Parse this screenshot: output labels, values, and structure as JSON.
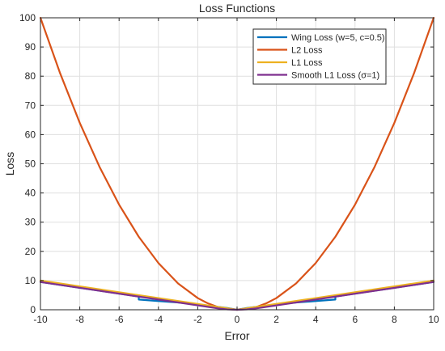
{
  "chart_data": {
    "type": "line",
    "title": "Loss Functions",
    "xlabel": "Error",
    "ylabel": "Loss",
    "xlim": [
      -10,
      10
    ],
    "ylim": [
      0,
      100
    ],
    "xticks": [
      -10,
      -8,
      -6,
      -4,
      -2,
      0,
      2,
      4,
      6,
      8,
      10
    ],
    "yticks": [
      0,
      10,
      20,
      30,
      40,
      50,
      60,
      70,
      80,
      90,
      100
    ],
    "grid": true,
    "legend_position": "top-right",
    "series": [
      {
        "name": "Wing Loss (w=5, c=0.5)",
        "color": "#0072BD",
        "x": [
          -10,
          -9,
          -8,
          -7,
          -6,
          -5,
          -4.999,
          -4,
          -3,
          -2,
          -1,
          -0.5,
          0,
          0.5,
          1,
          2,
          3,
          4,
          4.999,
          5,
          6,
          7,
          8,
          9,
          10
        ],
        "y": [
          9.52,
          8.52,
          7.52,
          6.52,
          5.52,
          4.52,
          3.49,
          2.97,
          2.47,
          1.8,
          1.02,
          0.6,
          0,
          0.6,
          1.02,
          1.8,
          2.47,
          2.97,
          3.49,
          4.52,
          5.52,
          6.52,
          7.52,
          8.52,
          9.52
        ]
      },
      {
        "name": "L2 Loss",
        "color": "#D95319",
        "x": [
          -10,
          -9,
          -8,
          -7,
          -6,
          -5,
          -4,
          -3,
          -2,
          -1.5,
          -1,
          -0.5,
          0,
          0.5,
          1,
          1.5,
          2,
          3,
          4,
          5,
          6,
          7,
          8,
          9,
          10
        ],
        "y": [
          100,
          81,
          64,
          49,
          36,
          25,
          16,
          9,
          4,
          2.25,
          1,
          0.25,
          0,
          0.25,
          1,
          2.25,
          4,
          9,
          16,
          25,
          36,
          49,
          64,
          81,
          100
        ]
      },
      {
        "name": "L1 Loss",
        "color": "#EDB120",
        "x": [
          -10,
          -5,
          0,
          5,
          10
        ],
        "y": [
          10,
          5,
          0,
          5,
          10
        ]
      },
      {
        "name": "Smooth L1 Loss (σ=1)",
        "color": "#7E2F8E",
        "x": [
          -10,
          -5,
          -1,
          -0.5,
          0,
          0.5,
          1,
          5,
          10
        ],
        "y": [
          9.5,
          4.5,
          0.5,
          0.125,
          0,
          0.125,
          0.5,
          4.5,
          9.5
        ]
      }
    ]
  }
}
